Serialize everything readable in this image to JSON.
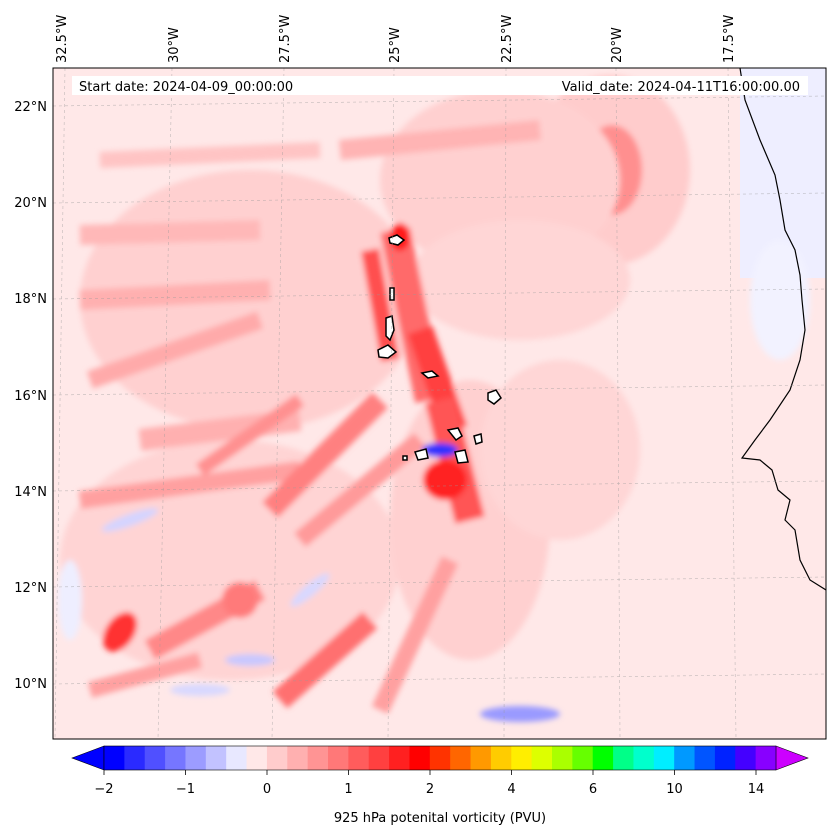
{
  "header": {
    "start_date": "Start date: 2024-04-09_00:00:00",
    "valid_date": "Valid_date: 2024-04-11T16:00:00.00"
  },
  "longitude_labels": [
    "32.5°W",
    "30°W",
    "27.5°W",
    "25°W",
    "22.5°W",
    "20°W",
    "17.5°W"
  ],
  "latitude_labels": [
    "22°N",
    "20°N",
    "18°N",
    "16°N",
    "14°N",
    "12°N",
    "10°N"
  ],
  "colorbar": {
    "title": "925 hPa potenital vorticity (PVU)",
    "tick_labels": [
      "−2",
      "−1",
      "0",
      "1",
      "2",
      "4",
      "6",
      "10",
      "14"
    ],
    "colors": [
      "#0000ff",
      "#2a2aff",
      "#5050ff",
      "#7676ff",
      "#9c9cff",
      "#c2c2ff",
      "#e8e8ff",
      "#ffe8e8",
      "#ffcccc",
      "#ffb0b0",
      "#ff9494",
      "#ff7878",
      "#ff5c5c",
      "#ff4040",
      "#ff2020",
      "#ff0000",
      "#ff3300",
      "#ff6600",
      "#ff9900",
      "#ffcc00",
      "#ffee00",
      "#ddff00",
      "#aaff00",
      "#66ff00",
      "#00ff00",
      "#00ff88",
      "#00ffcc",
      "#00eeff",
      "#0099ff",
      "#0055ff",
      "#0022ff",
      "#4400ff",
      "#8800ff"
    ],
    "under_color": "#0000ff",
    "over_color": "#cc00ff"
  },
  "map_colors": {
    "background": "#ffe8e8",
    "pale_red": "#ffcccc",
    "light_red": "#ffb0b0",
    "mid_red": "#ff8080",
    "strong_red": "#ff4040",
    "deep_red": "#ff0000",
    "pale_blue": "#e8e8ff",
    "light_blue": "#b0b0ff",
    "deep_blue": "#2020ff"
  }
}
